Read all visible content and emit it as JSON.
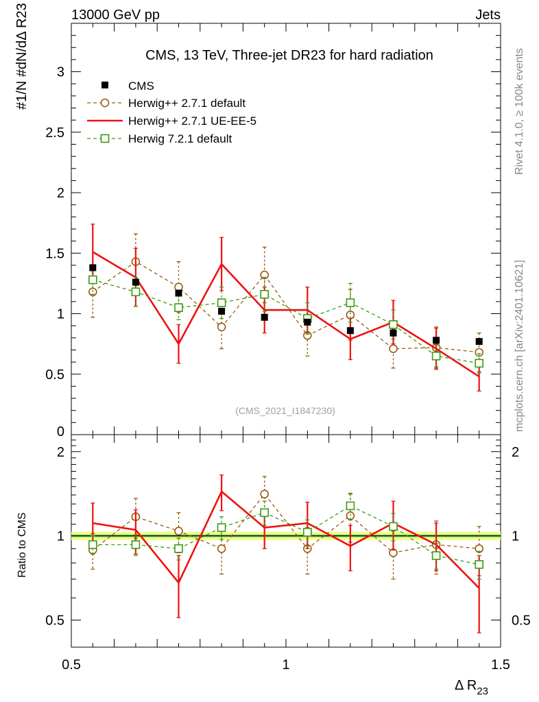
{
  "header": {
    "left": "13000 GeV pp",
    "right": "Jets"
  },
  "side_labels": {
    "rivet": "Rivet 4.1.0, ≥ 100k events",
    "mcplots": "mcplots.cern.ch [arXiv:2401.10621]"
  },
  "chart_data": {
    "type": "line",
    "title": "CMS, 13 TeV, Three-jet DR23 for hard radiation",
    "analysis_id": "(CMS_2021_I1847230)",
    "xlabel": "Δ R",
    "xlabel_sub": "23",
    "ylabel": "#1/N #dN/dΔ R23",
    "ratio_ylabel": "Ratio to CMS",
    "xlim": [
      0.5,
      1.5
    ],
    "ylim_main": [
      0,
      3.4
    ],
    "ylim_ratio": [
      0.4,
      2.3
    ],
    "ratio_log": true,
    "x_tick_labels": [
      "0.5",
      "1",
      "1.5"
    ],
    "main_tick_labels": [
      "0",
      "0.5",
      "1",
      "1.5",
      "2",
      "2.5",
      "3"
    ],
    "ratio_tick_labels": [
      "0.5",
      "1",
      "2"
    ],
    "x": [
      0.55,
      0.65,
      0.75,
      0.85,
      0.95,
      1.05,
      1.15,
      1.25,
      1.35,
      1.45
    ],
    "data_series": {
      "name": "CMS",
      "color": "#000000",
      "values": [
        1.38,
        1.26,
        1.17,
        1.02,
        0.97,
        0.93,
        0.86,
        0.84,
        0.78,
        0.77
      ]
    },
    "series": [
      {
        "name": "Herwig++ 2.7.1 default",
        "color": "#9a5a10",
        "marker": "circle",
        "dashed": true,
        "values": [
          1.18,
          1.43,
          1.22,
          0.89,
          1.32,
          0.82,
          0.99,
          0.71,
          0.72,
          0.68
        ],
        "errors": [
          0.21,
          0.23,
          0.21,
          0.18,
          0.23,
          0.17,
          0.21,
          0.16,
          0.17,
          0.16
        ],
        "ratio": [
          0.89,
          1.17,
          1.04,
          0.9,
          1.41,
          0.9,
          1.18,
          0.87,
          0.93,
          0.9
        ],
        "ratio_err": [
          0.13,
          0.19,
          0.17,
          0.17,
          0.22,
          0.17,
          0.23,
          0.17,
          0.2,
          0.18
        ]
      },
      {
        "name": "Herwig++ 2.7.1 UE-EE-5",
        "color": "#ee1111",
        "marker": "none",
        "dashed": false,
        "values": [
          1.51,
          1.3,
          0.75,
          1.41,
          1.03,
          1.03,
          0.79,
          0.93,
          0.71,
          0.48
        ],
        "errors": [
          0.23,
          0.24,
          0.16,
          0.22,
          0.19,
          0.19,
          0.17,
          0.18,
          0.17,
          0.12
        ],
        "ratio": [
          1.11,
          1.05,
          0.68,
          1.44,
          1.07,
          1.11,
          0.92,
          1.11,
          0.93,
          0.65
        ],
        "ratio_err": [
          0.2,
          0.19,
          0.17,
          0.21,
          0.17,
          0.21,
          0.17,
          0.22,
          0.18,
          0.2
        ]
      },
      {
        "name": "Herwig 7.2.1 default",
        "color": "#3c9a10",
        "marker": "square",
        "dashed": true,
        "values": [
          1.28,
          1.18,
          1.05,
          1.09,
          1.16,
          0.96,
          1.09,
          0.91,
          0.65,
          0.59
        ],
        "errors": [
          0.12,
          0.12,
          0.1,
          0.13,
          0.14,
          0.13,
          0.16,
          0.12,
          0.09,
          0.08
        ],
        "ratio": [
          0.93,
          0.93,
          0.9,
          1.07,
          1.21,
          1.03,
          1.28,
          1.08,
          0.85,
          0.79
        ],
        "ratio_err": [
          0.07,
          0.08,
          0.08,
          0.1,
          0.12,
          0.11,
          0.14,
          0.12,
          0.09,
          0.09
        ]
      }
    ]
  }
}
